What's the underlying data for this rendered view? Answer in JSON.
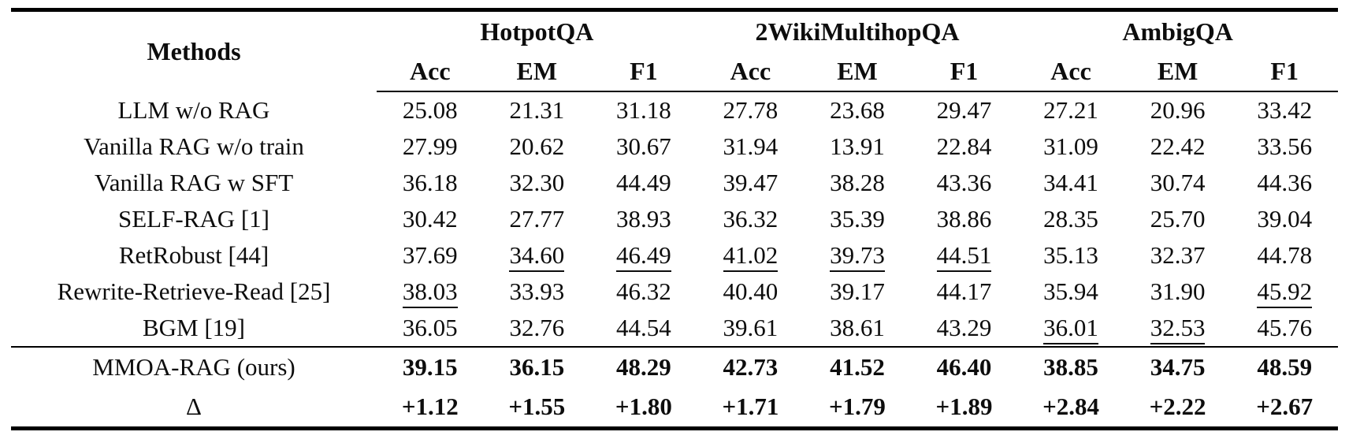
{
  "page": {
    "background_color": "#ffffff",
    "text_color": "#0d0d0d",
    "rule_color": "#000000"
  },
  "table": {
    "methods_header": "Methods",
    "groups": [
      {
        "name": "HotpotQA",
        "metrics": [
          "Acc",
          "EM",
          "F1"
        ]
      },
      {
        "name": "2WikiMultihopQA",
        "metrics": [
          "Acc",
          "EM",
          "F1"
        ]
      },
      {
        "name": "AmbigQA",
        "metrics": [
          "Acc",
          "EM",
          "F1"
        ]
      }
    ],
    "body_rows": [
      {
        "method": "LLM w/o RAG",
        "cells": [
          {
            "v": "25.08"
          },
          {
            "v": "21.31"
          },
          {
            "v": "31.18"
          },
          {
            "v": "27.78"
          },
          {
            "v": "23.68"
          },
          {
            "v": "29.47"
          },
          {
            "v": "27.21"
          },
          {
            "v": "20.96"
          },
          {
            "v": "33.42"
          }
        ]
      },
      {
        "method": "Vanilla RAG w/o train",
        "cells": [
          {
            "v": "27.99"
          },
          {
            "v": "20.62"
          },
          {
            "v": "30.67"
          },
          {
            "v": "31.94"
          },
          {
            "v": "13.91"
          },
          {
            "v": "22.84"
          },
          {
            "v": "31.09"
          },
          {
            "v": "22.42"
          },
          {
            "v": "33.56"
          }
        ]
      },
      {
        "method": "Vanilla RAG w SFT",
        "cells": [
          {
            "v": "36.18"
          },
          {
            "v": "32.30"
          },
          {
            "v": "44.49"
          },
          {
            "v": "39.47"
          },
          {
            "v": "38.28"
          },
          {
            "v": "43.36"
          },
          {
            "v": "34.41"
          },
          {
            "v": "30.74"
          },
          {
            "v": "44.36"
          }
        ]
      },
      {
        "method": "SELF-RAG [1]",
        "cells": [
          {
            "v": "30.42"
          },
          {
            "v": "27.77"
          },
          {
            "v": "38.93"
          },
          {
            "v": "36.32"
          },
          {
            "v": "35.39"
          },
          {
            "v": "38.86"
          },
          {
            "v": "28.35"
          },
          {
            "v": "25.70"
          },
          {
            "v": "39.04"
          }
        ]
      },
      {
        "method": "RetRobust [44]",
        "cells": [
          {
            "v": "37.69"
          },
          {
            "v": "34.60",
            "u": true
          },
          {
            "v": "46.49",
            "u": true
          },
          {
            "v": "41.02",
            "u": true
          },
          {
            "v": "39.73",
            "u": true
          },
          {
            "v": "44.51",
            "u": true
          },
          {
            "v": "35.13"
          },
          {
            "v": "32.37"
          },
          {
            "v": "44.78"
          }
        ]
      },
      {
        "method": "Rewrite-Retrieve-Read [25]",
        "cells": [
          {
            "v": "38.03",
            "u": true
          },
          {
            "v": "33.93"
          },
          {
            "v": "46.32"
          },
          {
            "v": "40.40"
          },
          {
            "v": "39.17"
          },
          {
            "v": "44.17"
          },
          {
            "v": "35.94"
          },
          {
            "v": "31.90"
          },
          {
            "v": "45.92",
            "u": true
          }
        ]
      },
      {
        "method": "BGM [19]",
        "cells": [
          {
            "v": "36.05"
          },
          {
            "v": "32.76"
          },
          {
            "v": "44.54"
          },
          {
            "v": "39.61"
          },
          {
            "v": "38.61"
          },
          {
            "v": "43.29"
          },
          {
            "v": "36.01",
            "u": true
          },
          {
            "v": "32.53",
            "u": true
          },
          {
            "v": "45.76"
          }
        ]
      }
    ],
    "summary_rows": [
      {
        "method": "MMOA-RAG (ours)",
        "cells": [
          {
            "v": "39.15"
          },
          {
            "v": "36.15"
          },
          {
            "v": "48.29"
          },
          {
            "v": "42.73"
          },
          {
            "v": "41.52"
          },
          {
            "v": "46.40"
          },
          {
            "v": "38.85"
          },
          {
            "v": "34.75"
          },
          {
            "v": "48.59"
          }
        ]
      },
      {
        "method": "Δ",
        "cells": [
          {
            "v": "+1.12"
          },
          {
            "v": "+1.55"
          },
          {
            "v": "+1.80"
          },
          {
            "v": "+1.71"
          },
          {
            "v": "+1.79"
          },
          {
            "v": "+1.89"
          },
          {
            "v": "+2.84"
          },
          {
            "v": "+2.22"
          },
          {
            "v": "+2.67"
          }
        ]
      }
    ]
  }
}
